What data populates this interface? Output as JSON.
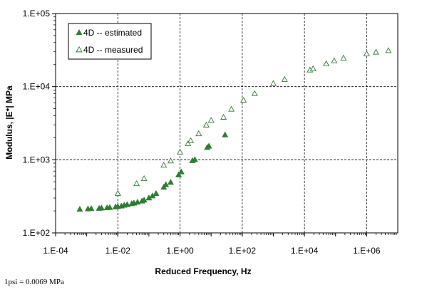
{
  "chart_data": {
    "type": "scatter",
    "xlabel": "Reduced Frequency, Hz",
    "ylabel": "Modulus, |E*| MPa",
    "x_scale": "log",
    "y_scale": "log",
    "xlim": [
      0.0001,
      10000000
    ],
    "ylim": [
      100,
      100000
    ],
    "x_major_ticks": [
      0.0001,
      0.01,
      1,
      100,
      10000,
      1000000
    ],
    "x_tick_labels": [
      "1.E-04",
      "1.E-02",
      "1.E+00",
      "1.E+02",
      "1.E+04",
      "1.E+06"
    ],
    "y_major_ticks": [
      100,
      1000,
      10000,
      100000
    ],
    "y_tick_labels": [
      "1.E+02",
      "1.E+03",
      "1.E+04",
      "1.E+05"
    ],
    "grid": "major, dashed",
    "legend_position": "top-left",
    "series": [
      {
        "name": "4D -- estimated",
        "marker": "filled-triangle",
        "color": "#2e7d32",
        "points": [
          [
            0.0006,
            210
          ],
          [
            0.0011,
            212
          ],
          [
            0.0014,
            214
          ],
          [
            0.0025,
            216
          ],
          [
            0.003,
            218
          ],
          [
            0.0045,
            220
          ],
          [
            0.0055,
            222
          ],
          [
            0.0085,
            226
          ],
          [
            0.01,
            228
          ],
          [
            0.013,
            232
          ],
          [
            0.016,
            238
          ],
          [
            0.02,
            243
          ],
          [
            0.028,
            250
          ],
          [
            0.033,
            255
          ],
          [
            0.043,
            262
          ],
          [
            0.06,
            272
          ],
          [
            0.07,
            280
          ],
          [
            0.1,
            300
          ],
          [
            0.13,
            320
          ],
          [
            0.17,
            345
          ],
          [
            0.3,
            420
          ],
          [
            0.35,
            455
          ],
          [
            0.5,
            490
          ],
          [
            0.9,
            620
          ],
          [
            1.1,
            680
          ],
          [
            2.5,
            970
          ],
          [
            3,
            1000
          ],
          [
            7.5,
            1470
          ],
          [
            8.5,
            1530
          ],
          [
            28,
            2180
          ]
        ]
      },
      {
        "name": "4D -- measured",
        "marker": "open-triangle",
        "color": "#2e7d32",
        "points": [
          [
            0.01,
            345
          ],
          [
            0.04,
            470
          ],
          [
            0.07,
            550
          ],
          [
            0.3,
            840
          ],
          [
            0.5,
            960
          ],
          [
            1.0,
            1270
          ],
          [
            1.8,
            1650
          ],
          [
            2.2,
            1820
          ],
          [
            4.0,
            2260
          ],
          [
            7.0,
            2970
          ],
          [
            10,
            3450
          ],
          [
            25,
            3800
          ],
          [
            45,
            4900
          ],
          [
            110,
            6500
          ],
          [
            250,
            8000
          ],
          [
            1000,
            11000
          ],
          [
            2300,
            12500
          ],
          [
            15000,
            16800
          ],
          [
            19000,
            17500
          ],
          [
            50000,
            20500
          ],
          [
            90000,
            22500
          ],
          [
            180000,
            24500
          ],
          [
            1000000,
            28000
          ],
          [
            2000000,
            29500
          ],
          [
            5000000,
            31000
          ]
        ]
      }
    ]
  },
  "footnote": "1psi = 0.0069 MPa"
}
